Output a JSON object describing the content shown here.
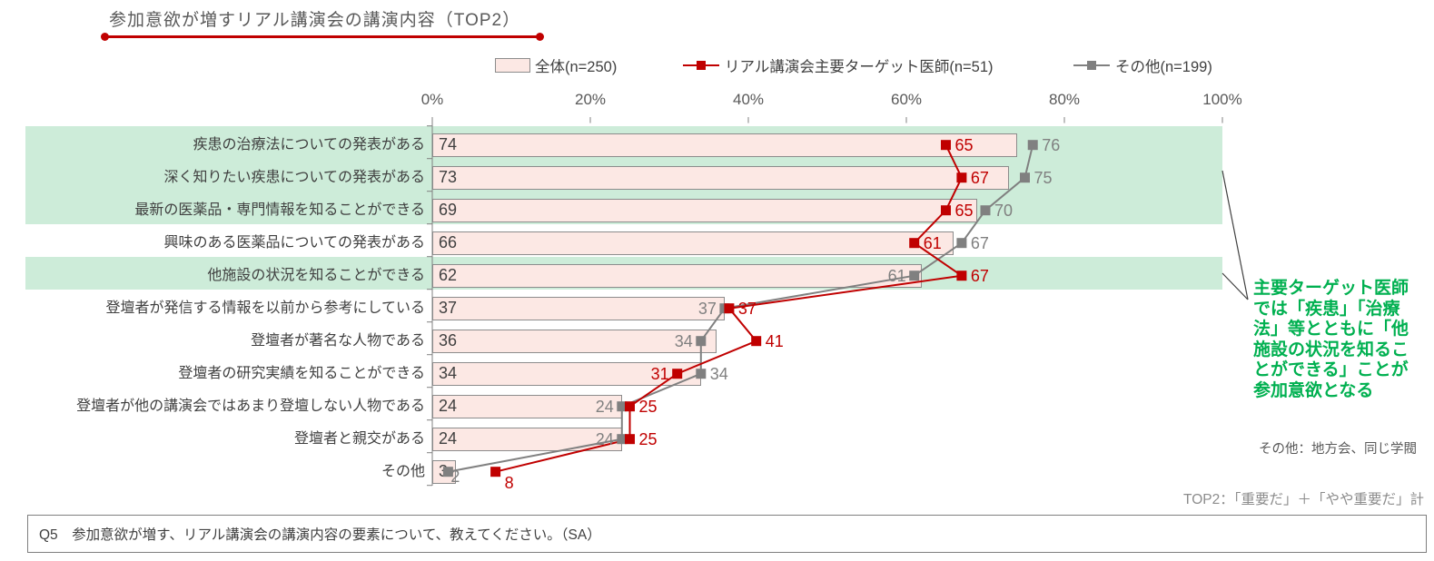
{
  "title": "参加意欲が増すリアル講演会の講演内容（TOP2）",
  "legend": {
    "items": [
      {
        "label": "全体(n=250)",
        "marker": "bar-swatch"
      },
      {
        "label": "リアル講演会主要ターゲット医師(n=51)",
        "marker": "red-line-square"
      },
      {
        "label": "その他(n=199)",
        "marker": "gray-line-square"
      }
    ]
  },
  "colors": {
    "bar_fill": "#fce8e4",
    "bar_border": "#8c8c8c",
    "highlight_band": "#cdecd9",
    "target_series": "#c00000",
    "other_series": "#808080",
    "annotation_green": "#00b050",
    "title_accent": "#c00000"
  },
  "chart_data": {
    "type": "bar",
    "orientation": "horizontal",
    "title": "参加意欲が増すリアル講演会の講演内容（TOP2）",
    "categories": [
      "疾患の治療法についての発表がある",
      "深く知りたい疾患についての発表がある",
      "最新の医薬品・専門情報を知ることができる",
      "興味のある医薬品についての発表がある",
      "他施設の状況を知ることができる",
      "登壇者が発信する情報を以前から参考にしている",
      "登壇者が著名な人物である",
      "登壇者の研究実績を知ることができる",
      "登壇者が他の講演会ではあまり登壇しない人物である",
      "登壇者と親交がある",
      "その他"
    ],
    "series": [
      {
        "name": "全体(n=250)",
        "type": "bar",
        "color": "#fce8e4",
        "values": [
          74,
          73,
          69,
          66,
          62,
          37,
          36,
          34,
          24,
          24,
          3
        ]
      },
      {
        "name": "リアル講演会主要ターゲット医師(n=51)",
        "type": "line",
        "color": "#c00000",
        "values": [
          65,
          67,
          65,
          61,
          67,
          37,
          41,
          31,
          25,
          25,
          8
        ],
        "label_side": [
          "right",
          "right",
          "right",
          "right",
          "right",
          "right",
          "right",
          "left",
          "right",
          "right",
          "below"
        ]
      },
      {
        "name": "その他(n=199)",
        "type": "line",
        "color": "#808080",
        "values": [
          76,
          75,
          70,
          67,
          61,
          37,
          34,
          34,
          24,
          24,
          2
        ],
        "label_side": [
          "right",
          "right",
          "right",
          "right",
          "left",
          "left",
          "left",
          "right",
          "left",
          "left",
          "below"
        ]
      }
    ],
    "xlim": [
      0,
      100
    ],
    "x_tick_labels": [
      "0%",
      "20%",
      "40%",
      "60%",
      "80%",
      "100%"
    ],
    "x_tick_values": [
      0,
      20,
      40,
      60,
      80,
      100
    ],
    "grid": false,
    "legend_position": "top",
    "highlighted_rows": [
      0,
      1,
      2,
      4
    ]
  },
  "annotation": {
    "text": "主要ターゲット医師では「疾患」「治療法」等とともに「他施設の状況を知ることができる」ことが参加意欲となる"
  },
  "notes": {
    "other": "その他：地方会、同じ学閥",
    "top2": "TOP2：「重要だ」＋「やや重要だ」計"
  },
  "question": "Q5　参加意欲が増す、リアル講演会の講演内容の要素について、教えてください。（SA）"
}
